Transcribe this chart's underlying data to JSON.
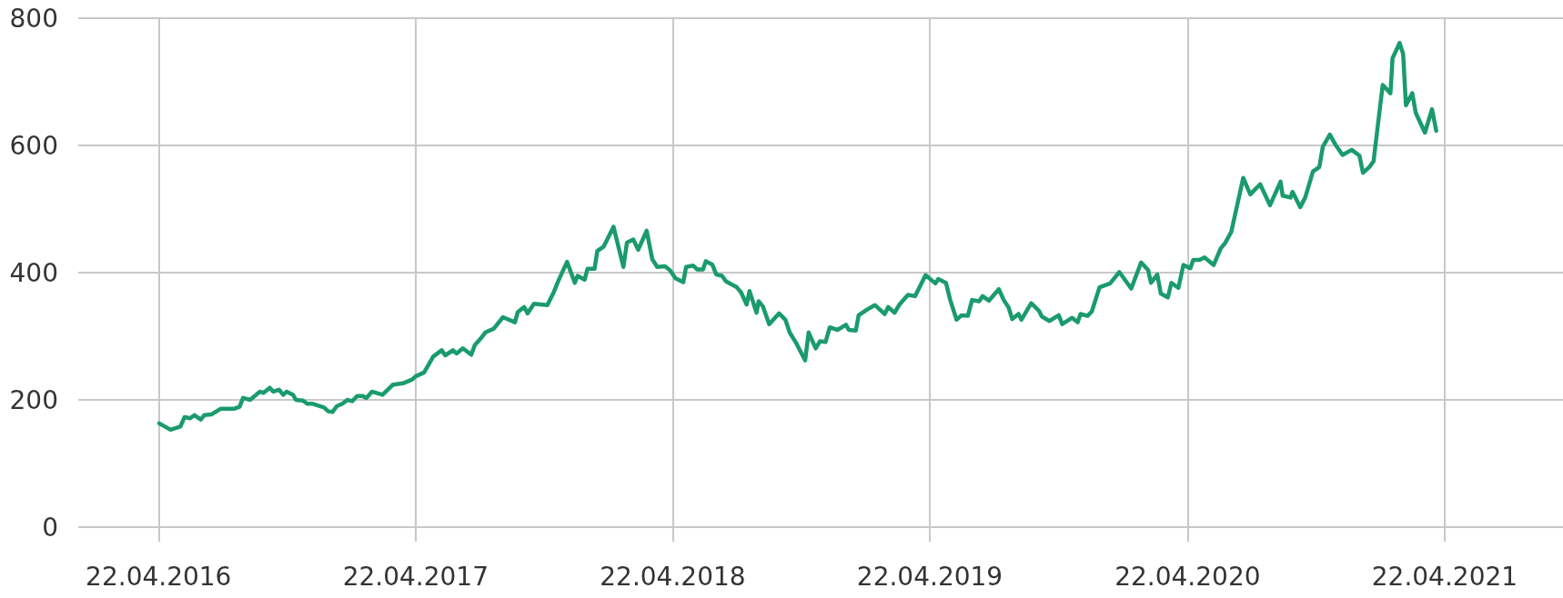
{
  "chart_data": {
    "type": "line",
    "color": "#1a9b6c",
    "grid": true,
    "marker": "none",
    "line_style": "solid",
    "xlim": [
      "2015-12-30",
      "2021-10-07"
    ],
    "ylim": [
      0,
      800
    ],
    "yticks": [
      0,
      200,
      400,
      600,
      800
    ],
    "xticks": [
      {
        "value": "2016-04-22",
        "label": "22.04.2016"
      },
      {
        "value": "2017-04-22",
        "label": "22.04.2017"
      },
      {
        "value": "2018-04-22",
        "label": "22.04.2018"
      },
      {
        "value": "2019-04-22",
        "label": "22.04.2019"
      },
      {
        "value": "2020-04-22",
        "label": "22.04.2020"
      },
      {
        "value": "2021-04-22",
        "label": "22.04.2021"
      }
    ],
    "x": [
      "2016-04-23",
      "2016-05-09",
      "2016-05-23",
      "2016-05-29",
      "2016-06-06",
      "2016-06-12",
      "2016-06-21",
      "2016-06-26",
      "2016-07-06",
      "2016-07-19",
      "2016-08-07",
      "2016-08-15",
      "2016-08-20",
      "2016-08-30",
      "2016-09-13",
      "2016-09-18",
      "2016-09-27",
      "2016-10-02",
      "2016-10-10",
      "2016-10-16",
      "2016-10-21",
      "2016-10-30",
      "2016-11-03",
      "2016-11-13",
      "2016-11-19",
      "2016-11-26",
      "2016-12-13",
      "2016-12-19",
      "2016-12-25",
      "2016-12-31",
      "2017-01-08",
      "2017-01-15",
      "2017-01-22",
      "2017-01-29",
      "2017-02-06",
      "2017-02-11",
      "2017-02-19",
      "2017-03-06",
      "2017-03-21",
      "2017-04-04",
      "2017-04-17",
      "2017-04-22",
      "2017-05-04",
      "2017-05-17",
      "2017-05-29",
      "2017-06-03",
      "2017-06-14",
      "2017-06-19",
      "2017-06-28",
      "2017-07-10",
      "2017-07-15",
      "2017-07-23",
      "2017-07-30",
      "2017-08-11",
      "2017-08-24",
      "2017-09-10",
      "2017-09-14",
      "2017-09-23",
      "2017-09-28",
      "2017-10-07",
      "2017-10-26",
      "2017-11-04",
      "2017-11-11",
      "2017-11-23",
      "2017-12-04",
      "2017-12-08",
      "2017-12-18",
      "2017-12-22",
      "2018-01-01",
      "2018-01-05",
      "2018-01-14",
      "2018-01-28",
      "2018-02-11",
      "2018-02-16",
      "2018-02-25",
      "2018-03-04",
      "2018-03-16",
      "2018-03-24",
      "2018-03-31",
      "2018-04-11",
      "2018-04-18",
      "2018-04-26",
      "2018-05-07",
      "2018-05-11",
      "2018-05-21",
      "2018-05-27",
      "2018-06-04",
      "2018-06-08",
      "2018-06-17",
      "2018-06-23",
      "2018-07-01",
      "2018-07-07",
      "2018-07-22",
      "2018-07-28",
      "2018-08-05",
      "2018-08-09",
      "2018-08-19",
      "2018-08-22",
      "2018-08-28",
      "2018-09-06",
      "2018-09-20",
      "2018-09-29",
      "2018-10-05",
      "2018-10-15",
      "2018-10-27",
      "2018-11-01",
      "2018-11-11",
      "2018-11-17",
      "2018-11-25",
      "2018-12-01",
      "2018-12-12",
      "2018-12-24",
      "2018-12-28",
      "2019-01-07",
      "2019-01-11",
      "2019-01-23",
      "2019-02-03",
      "2019-02-17",
      "2019-02-22",
      "2019-03-03",
      "2019-03-10",
      "2019-03-22",
      "2019-04-01",
      "2019-04-16",
      "2019-04-30",
      "2019-05-04",
      "2019-05-15",
      "2019-05-21",
      "2019-05-30",
      "2019-06-06",
      "2019-06-15",
      "2019-06-21",
      "2019-07-01",
      "2019-07-06",
      "2019-07-15",
      "2019-07-29",
      "2019-08-05",
      "2019-08-12",
      "2019-08-17",
      "2019-08-26",
      "2019-08-30",
      "2019-09-13",
      "2019-09-24",
      "2019-09-28",
      "2019-10-09",
      "2019-10-22",
      "2019-10-27",
      "2019-11-10",
      "2019-11-18",
      "2019-11-22",
      "2019-12-02",
      "2019-12-08",
      "2019-12-19",
      "2020-01-03",
      "2020-01-16",
      "2020-02-02",
      "2020-02-16",
      "2020-02-26",
      "2020-03-01",
      "2020-03-10",
      "2020-03-15",
      "2020-03-25",
      "2020-03-30",
      "2020-04-09",
      "2020-04-16",
      "2020-04-26",
      "2020-04-30",
      "2020-05-09",
      "2020-05-16",
      "2020-05-29",
      "2020-06-08",
      "2020-06-14",
      "2020-06-23",
      "2020-07-10",
      "2020-07-20",
      "2020-08-03",
      "2020-08-17",
      "2020-09-01",
      "2020-09-04",
      "2020-09-15",
      "2020-09-18",
      "2020-09-29",
      "2020-10-06",
      "2020-10-17",
      "2020-10-26",
      "2020-10-31",
      "2020-11-10",
      "2020-11-18",
      "2020-11-28",
      "2020-12-11",
      "2020-12-22",
      "2020-12-27",
      "2021-01-05",
      "2021-01-11",
      "2021-01-24",
      "2021-02-04",
      "2021-02-07",
      "2021-02-17",
      "2021-02-22",
      "2021-02-26",
      "2021-03-07",
      "2021-03-12",
      "2021-03-25",
      "2021-04-04",
      "2021-04-10"
    ],
    "values": [
      163,
      153,
      158,
      173,
      171,
      176,
      169,
      176,
      177,
      186,
      186,
      189,
      203,
      200,
      213,
      211,
      219,
      213,
      216,
      208,
      213,
      208,
      200,
      199,
      194,
      194,
      188,
      182,
      181,
      190,
      194,
      200,
      198,
      206,
      206,
      203,
      213,
      208,
      224,
      226,
      232,
      237,
      243,
      268,
      278,
      270,
      278,
      273,
      281,
      271,
      286,
      296,
      306,
      312,
      330,
      322,
      338,
      346,
      336,
      351,
      349,
      369,
      388,
      417,
      384,
      395,
      389,
      406,
      406,
      434,
      441,
      472,
      409,
      447,
      452,
      436,
      466,
      421,
      409,
      410,
      404,
      391,
      385,
      409,
      411,
      405,
      405,
      418,
      413,
      397,
      395,
      386,
      377,
      369,
      350,
      371,
      337,
      355,
      347,
      319,
      336,
      326,
      306,
      288,
      262,
      306,
      281,
      292,
      291,
      314,
      310,
      318,
      310,
      309,
      333,
      342,
      349,
      335,
      346,
      337,
      350,
      365,
      363,
      396,
      383,
      390,
      384,
      357,
      326,
      333,
      332,
      357,
      355,
      363,
      356,
      374,
      357,
      345,
      327,
      335,
      326,
      352,
      340,
      331,
      324,
      333,
      319,
      329,
      322,
      335,
      332,
      339,
      377,
      383,
      401,
      375,
      416,
      404,
      384,
      397,
      367,
      361,
      384,
      376,
      412,
      407,
      420,
      420,
      424,
      412,
      438,
      446,
      464,
      549,
      523,
      539,
      506,
      543,
      521,
      518,
      527,
      503,
      518,
      559,
      566,
      598,
      617,
      601,
      585,
      593,
      584,
      557,
      566,
      575,
      695,
      682,
      737,
      761,
      744,
      663,
      682,
      651,
      620,
      657,
      623
    ]
  }
}
